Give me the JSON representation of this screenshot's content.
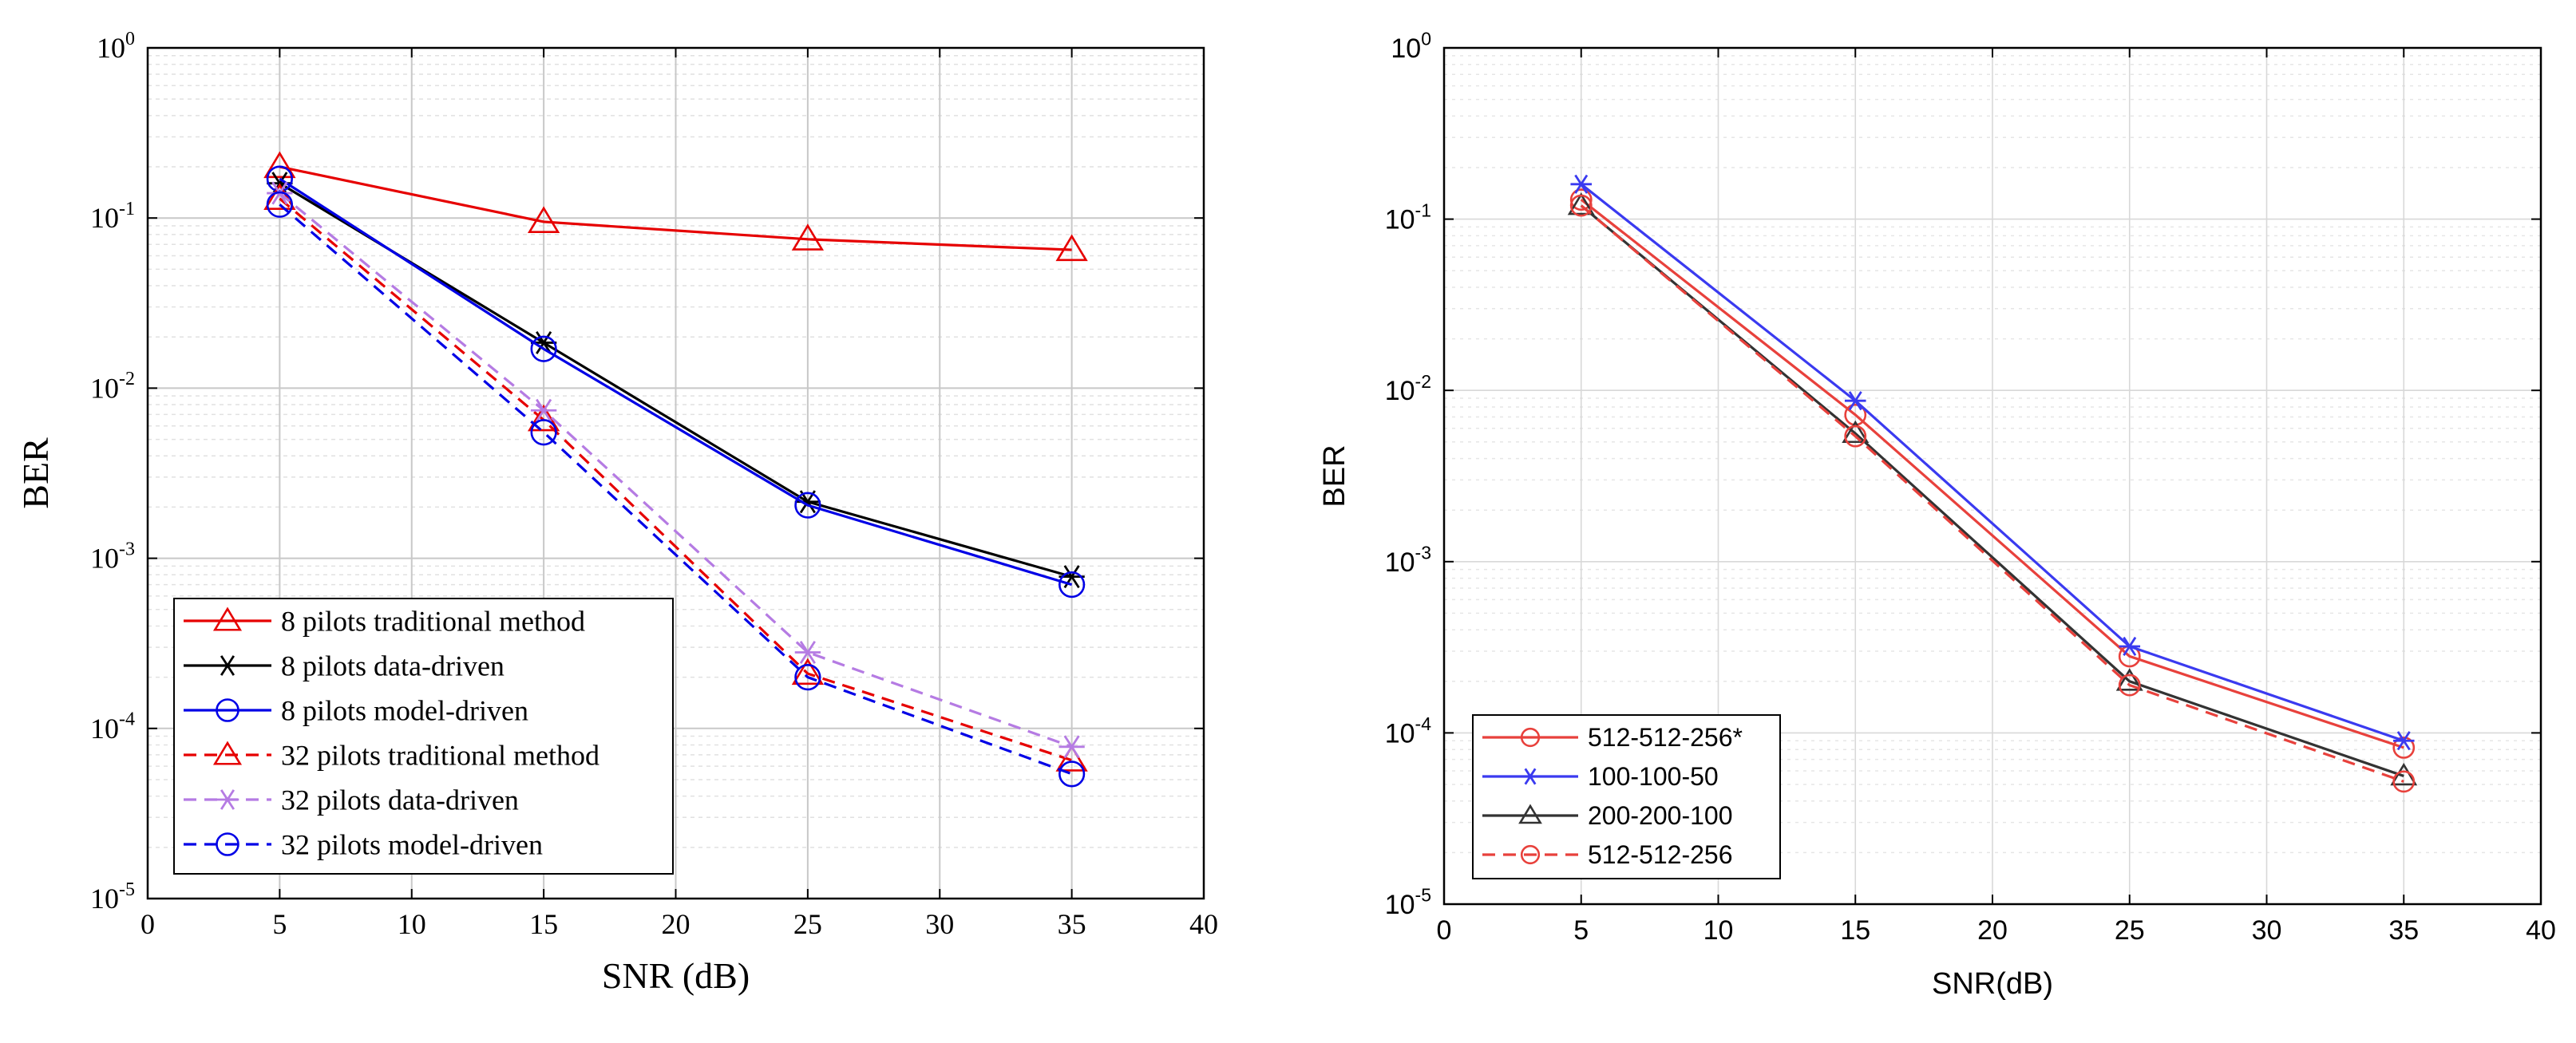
{
  "chart_data": [
    {
      "type": "line",
      "yscale": "log",
      "title": "",
      "xlabel": "SNR (dB)",
      "ylabel": "BER",
      "xlim": [
        0,
        40
      ],
      "ylim": [
        1e-05,
        1
      ],
      "x_ticks": [
        "0",
        "5",
        "10",
        "15",
        "20",
        "25",
        "30",
        "35",
        "40"
      ],
      "y_ticks": [
        {
          "base": "10",
          "exp": "0"
        },
        {
          "base": "10",
          "exp": "-1"
        },
        {
          "base": "10",
          "exp": "-2"
        },
        {
          "base": "10",
          "exp": "-3"
        },
        {
          "base": "10",
          "exp": "-4"
        },
        {
          "base": "10",
          "exp": "-5"
        }
      ],
      "grid": true,
      "legend_position": "lower-left",
      "x": [
        5,
        15,
        25,
        35
      ],
      "series": [
        {
          "name": "8 pilots traditional method",
          "color": "#e60000",
          "dash": "solid",
          "marker": "triangle",
          "values": [
            0.2,
            0.095,
            0.075,
            0.065
          ]
        },
        {
          "name": "8 pilots data-driven",
          "color": "#000000",
          "dash": "solid",
          "marker": "asterisk",
          "values": [
            0.16,
            0.0185,
            0.00215,
            0.00078
          ]
        },
        {
          "name": "8 pilots model-driven",
          "color": "#0000e6",
          "dash": "solid",
          "marker": "circle",
          "values": [
            0.17,
            0.017,
            0.00205,
            0.0007
          ]
        },
        {
          "name": "32 pilots traditional method",
          "color": "#e60000",
          "dash": "dashed",
          "marker": "triangle",
          "values": [
            0.13,
            0.0065,
            0.00021,
            6.5e-05
          ]
        },
        {
          "name": "32 pilots data-driven",
          "color": "#b57be3",
          "dash": "dashed",
          "marker": "asterisk",
          "values": [
            0.14,
            0.0074,
            0.00028,
            7.8e-05
          ]
        },
        {
          "name": "32 pilots model-driven",
          "color": "#0000e6",
          "dash": "dashed",
          "marker": "circle",
          "values": [
            0.12,
            0.0055,
            0.0002,
            5.4e-05
          ]
        }
      ]
    },
    {
      "type": "line",
      "yscale": "log",
      "title": "",
      "xlabel": "SNR(dB)",
      "ylabel": "BER",
      "xlim": [
        0,
        40
      ],
      "ylim": [
        1e-05,
        1
      ],
      "x_ticks": [
        "0",
        "5",
        "10",
        "15",
        "20",
        "25",
        "30",
        "35",
        "40"
      ],
      "y_ticks": [
        {
          "base": "10",
          "exp": "0"
        },
        {
          "base": "10",
          "exp": "-1"
        },
        {
          "base": "10",
          "exp": "-2"
        },
        {
          "base": "10",
          "exp": "-3"
        },
        {
          "base": "10",
          "exp": "-4"
        },
        {
          "base": "10",
          "exp": "-5"
        }
      ],
      "grid": true,
      "legend_position": "lower-left",
      "x": [
        5,
        15,
        25,
        35
      ],
      "series": [
        {
          "name": "512-512-256*",
          "color": "#e8413c",
          "dash": "solid",
          "marker": "circle",
          "values": [
            0.13,
            0.0072,
            0.00028,
            8.2e-05
          ]
        },
        {
          "name": "100-100-50",
          "color": "#3a3af0",
          "dash": "solid",
          "marker": "asterisk",
          "values": [
            0.16,
            0.0087,
            0.00032,
            9e-05
          ]
        },
        {
          "name": "200-200-100",
          "color": "#333333",
          "dash": "solid",
          "marker": "triangle",
          "values": [
            0.12,
            0.0056,
            0.0002,
            5.6e-05
          ]
        },
        {
          "name": "512-512-256",
          "color": "#e8413c",
          "dash": "dashed",
          "marker": "circle",
          "values": [
            0.12,
            0.0054,
            0.00019,
            5.2e-05
          ]
        }
      ]
    }
  ]
}
